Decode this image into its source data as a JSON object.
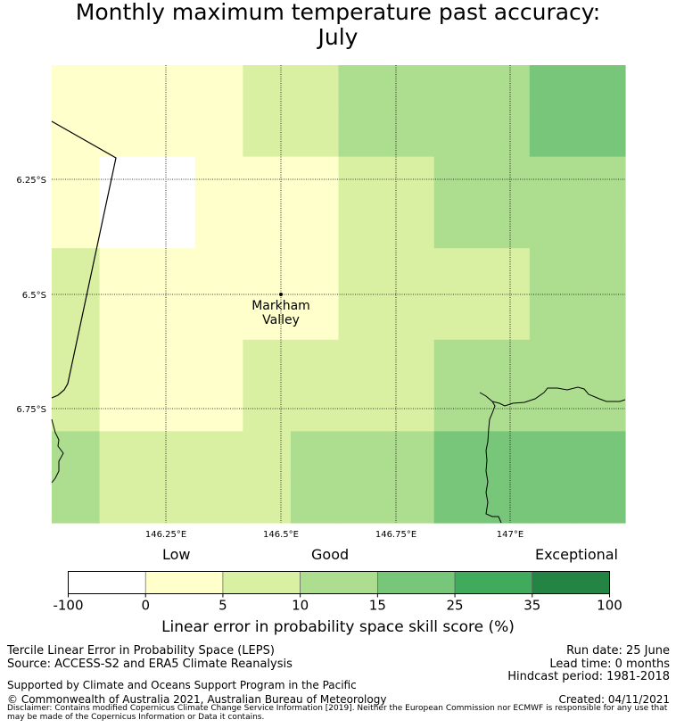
{
  "title": {
    "line1": "Monthly maximum temperature past accuracy:",
    "line2": "July"
  },
  "map": {
    "place_label": [
      "Markham",
      "Valley"
    ],
    "lat_ticks": [
      "6.25°S",
      "6.5°S",
      "6.75°S"
    ],
    "lon_ticks": [
      "146.25°E",
      "146.5°E",
      "146.75°E",
      "147°E"
    ],
    "grid": true,
    "cells": [
      [
        "0-5",
        "0-5",
        "0-5",
        "0-5",
        "5-10",
        "5-10",
        "10-15",
        "10-15",
        "10-15",
        "10-15",
        "15-25",
        "15-25"
      ],
      [
        "0-5",
        "0-5",
        "0-5",
        "0-5",
        "5-10",
        "5-10",
        "10-15",
        "10-15",
        "10-15",
        "10-15",
        "15-25",
        "15-25"
      ],
      [
        "0-5",
        "-100-0",
        "-100-0",
        "0-5",
        "0-5",
        "0-5",
        "5-10",
        "5-10",
        "10-15",
        "10-15",
        "10-15",
        "10-15"
      ],
      [
        "0-5",
        "-100-0",
        "-100-0",
        "0-5",
        "0-5",
        "0-5",
        "5-10",
        "5-10",
        "10-15",
        "10-15",
        "10-15",
        "10-15"
      ],
      [
        "5-10",
        "0-5",
        "0-5",
        "0-5",
        "0-5",
        "0-5",
        "5-10",
        "5-10",
        "5-10",
        "5-10",
        "10-15",
        "10-15"
      ],
      [
        "5-10",
        "0-5",
        "0-5",
        "0-5",
        "0-5",
        "0-5",
        "5-10",
        "5-10",
        "5-10",
        "5-10",
        "10-15",
        "10-15"
      ],
      [
        "5-10",
        "0-5",
        "0-5",
        "0-5",
        "5-10",
        "5-10",
        "5-10",
        "5-10",
        "10-15",
        "10-15",
        "10-15",
        "10-15"
      ],
      [
        "5-10",
        "0-5",
        "0-5",
        "0-5",
        "5-10",
        "5-10",
        "5-10",
        "5-10",
        "10-15",
        "10-15",
        "10-15",
        "10-15"
      ],
      [
        "10-15",
        "5-10",
        "5-10",
        "5-10",
        "5-10",
        "10-15",
        "10-15",
        "10-15",
        "15-25",
        "15-25",
        "15-25",
        "15-25"
      ],
      [
        "10-15",
        "5-10",
        "5-10",
        "5-10",
        "5-10",
        "10-15",
        "10-15",
        "10-15",
        "15-25",
        "15-25",
        "15-25",
        "15-25"
      ]
    ]
  },
  "colorbar": {
    "category_labels": [
      "Low",
      "Good",
      "Exceptional"
    ],
    "ticks": [
      "-100",
      "0",
      "5",
      "10",
      "15",
      "25",
      "35",
      "100"
    ],
    "bins": [
      {
        "range": "-100-0",
        "color": "#ffffff"
      },
      {
        "range": "0-5",
        "color": "#ffffcc"
      },
      {
        "range": "5-10",
        "color": "#d9f0a3"
      },
      {
        "range": "10-15",
        "color": "#addd8e"
      },
      {
        "range": "15-25",
        "color": "#78c679"
      },
      {
        "range": "25-35",
        "color": "#41ab5d"
      },
      {
        "range": "35-100",
        "color": "#238443"
      }
    ],
    "title": "Linear error in probability space skill score (%)"
  },
  "footer": {
    "left1": "Tercile Linear Error in Probability Space (LEPS)",
    "left2": "Source: ACCESS-S2 and ERA5 Climate Reanalysis",
    "left3": "Supported by Climate and Oceans Support Program in the Pacific",
    "left4": "© Commonwealth of Australia 2021, Australian Bureau of Meteorology",
    "right1": "Run date: 25 June",
    "right2": "Lead time: 0 months",
    "right3": "Hindcast period: 1981-2018",
    "right4": "Created: 04/11/2021",
    "disclaimer": "Disclaimer: Contains modified Copernicus Climate Change Service Information [2019]. Neither the European Commission nor ECMWF is responsible for any use that may be made of the Copernicus Information or Data it contains."
  }
}
